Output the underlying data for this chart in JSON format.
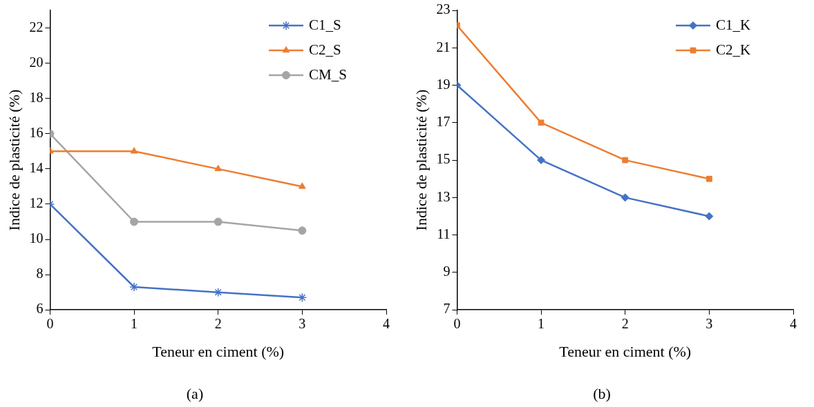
{
  "chart_data": [
    {
      "type": "line",
      "title": "(a)",
      "xlabel": "Teneur en ciment (%)",
      "ylabel": "Indice de plasticité (%)",
      "x": [
        0,
        1,
        2,
        3
      ],
      "xlim": [
        0,
        4
      ],
      "xticks": [
        0,
        1,
        2,
        3,
        4
      ],
      "ylim": [
        6,
        23
      ],
      "yticks": [
        6,
        8,
        10,
        12,
        14,
        16,
        18,
        20,
        22
      ],
      "grid": false,
      "legend": "top right",
      "line_style": "solid",
      "series": [
        {
          "name": "C1_S",
          "color": "#4472c4",
          "marker": "cross",
          "values": [
            12,
            7.3,
            7.0,
            6.7
          ]
        },
        {
          "name": "C2_S",
          "color": "#ed7d31",
          "marker": "triangle",
          "values": [
            15,
            15,
            14,
            13
          ]
        },
        {
          "name": "CM_S",
          "color": "#a5a5a5",
          "marker": "circle",
          "values": [
            16,
            11,
            11,
            10.5
          ]
        }
      ]
    },
    {
      "type": "line",
      "title": "(b)",
      "xlabel": "Teneur en ciment (%)",
      "ylabel": "Indice de plasticité (%)",
      "x": [
        0,
        1,
        2,
        3
      ],
      "xlim": [
        0,
        4
      ],
      "xticks": [
        0,
        1,
        2,
        3,
        4
      ],
      "ylim": [
        7,
        23
      ],
      "yticks": [
        7,
        9,
        11,
        13,
        15,
        17,
        19,
        21,
        23
      ],
      "grid": false,
      "legend": "top right",
      "line_style": "solid",
      "series": [
        {
          "name": "C1_K",
          "color": "#4472c4",
          "marker": "diamond",
          "values": [
            19,
            15,
            13,
            12
          ]
        },
        {
          "name": "C2_K",
          "color": "#ed7d31",
          "marker": "square",
          "values": [
            22.2,
            17,
            15,
            14
          ]
        }
      ]
    }
  ]
}
